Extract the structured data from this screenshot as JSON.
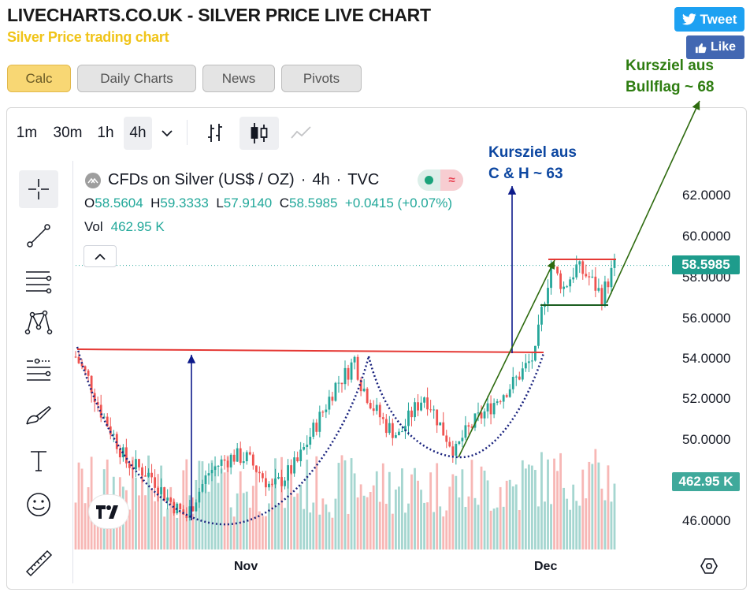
{
  "site": {
    "title": "LIVECHARTS.CO.UK - SILVER PRICE LIVE CHART",
    "subtitle": "Silver Price trading chart"
  },
  "social": {
    "tweet_label": "Tweet",
    "like_label": "Like"
  },
  "tabs": [
    {
      "label": "Calc",
      "active": true
    },
    {
      "label": "Daily Charts",
      "active": false
    },
    {
      "label": "News",
      "active": false
    },
    {
      "label": "Pivots",
      "active": false
    }
  ],
  "toolbar": {
    "timeframes": [
      {
        "label": "1m",
        "active": false
      },
      {
        "label": "30m",
        "active": false
      },
      {
        "label": "1h",
        "active": false
      },
      {
        "label": "4h",
        "active": true
      }
    ]
  },
  "side_tools": [
    {
      "icon": "crosshair-icon",
      "active": true
    },
    {
      "icon": "trend-line-icon",
      "active": false
    },
    {
      "icon": "fib-retracement-icon",
      "active": false
    },
    {
      "icon": "pattern-icon",
      "active": false
    },
    {
      "icon": "prediction-icon",
      "active": false
    },
    {
      "icon": "brush-icon",
      "active": false
    },
    {
      "icon": "text-icon",
      "active": false
    },
    {
      "icon": "emoji-icon",
      "active": false
    },
    {
      "icon": "ruler-icon",
      "active": false
    }
  ],
  "legend": {
    "symbol": "CFDs on Silver (US$ / OZ)",
    "interval": "4h",
    "exchange": "TVC",
    "sep": "·",
    "o_label": "O",
    "o": "58.5604",
    "h_label": "H",
    "h": "59.3333",
    "l_label": "L",
    "l": "57.9140",
    "c_label": "C",
    "c": "58.5985",
    "change": "+0.0415 (+0.07%)",
    "vol_label": "Vol",
    "vol": "462.95 K"
  },
  "status_pill_symbol": "≈",
  "colors": {
    "up": "#26a69a",
    "down": "#ef5350",
    "vol_up": "#a5d6d0",
    "vol_down": "#f7b7b5",
    "resistance": "#e53935",
    "green_annot": "#2e7d11",
    "blue_annot": "#0d47a1",
    "price_tag": "#1e9c8c"
  },
  "price_tag_text": "58.5985",
  "volume_tag_text": "462.95 K",
  "annotations": {
    "bullflag": [
      "Kursziel aus",
      "Bullflag ~ 68"
    ],
    "cup_handle": [
      "Kursziel aus",
      "C & H ~ 63"
    ]
  },
  "chart_data": {
    "type": "candlestick",
    "symbol": "CFDs on Silver (US$ / OZ)",
    "interval": "4h",
    "ylim": [
      45,
      63
    ],
    "y_ticks": [
      "62.0000",
      "60.0000",
      "58.0000",
      "56.0000",
      "54.0000",
      "52.0000",
      "50.0000",
      "46.0000"
    ],
    "y_tick_values": [
      62,
      60,
      58,
      56,
      54,
      52,
      50,
      46
    ],
    "x_ticks": [
      "Nov",
      "Dec"
    ],
    "last_price": 58.5985,
    "last_volume": "462.95 K",
    "price_path": [
      [
        0,
        54.1
      ],
      [
        4,
        53.0
      ],
      [
        8,
        51.4
      ],
      [
        12,
        50.2
      ],
      [
        16,
        48.9
      ],
      [
        20,
        48.6
      ],
      [
        24,
        48.2
      ],
      [
        28,
        47.3
      ],
      [
        32,
        46.6
      ],
      [
        35,
        46.2
      ],
      [
        38,
        47.2
      ],
      [
        42,
        48.4
      ],
      [
        46,
        48.9
      ],
      [
        50,
        49.2
      ],
      [
        54,
        49.1
      ],
      [
        58,
        48.4
      ],
      [
        62,
        47.6
      ],
      [
        66,
        48.2
      ],
      [
        70,
        48.9
      ],
      [
        74,
        50.2
      ],
      [
        78,
        51.4
      ],
      [
        82,
        52.7
      ],
      [
        86,
        53.4
      ],
      [
        88,
        54.0
      ],
      [
        90,
        52.8
      ],
      [
        94,
        51.6
      ],
      [
        98,
        50.7
      ],
      [
        102,
        50.2
      ],
      [
        106,
        51.3
      ],
      [
        110,
        52.2
      ],
      [
        112,
        51.7
      ],
      [
        116,
        50.4
      ],
      [
        120,
        49.4
      ],
      [
        122,
        50.1
      ],
      [
        126,
        50.9
      ],
      [
        130,
        51.5
      ],
      [
        134,
        52.2
      ],
      [
        138,
        52.8
      ],
      [
        142,
        53.6
      ],
      [
        145,
        54.2
      ],
      [
        147,
        56.3
      ],
      [
        150,
        58.6
      ],
      [
        154,
        57.5
      ],
      [
        158,
        58.5
      ],
      [
        162,
        58.0
      ],
      [
        166,
        57.1
      ],
      [
        170,
        58.6
      ]
    ],
    "resistance_level": 54.3,
    "flag_top": 58.8,
    "flag_bottom": 56.6
  }
}
